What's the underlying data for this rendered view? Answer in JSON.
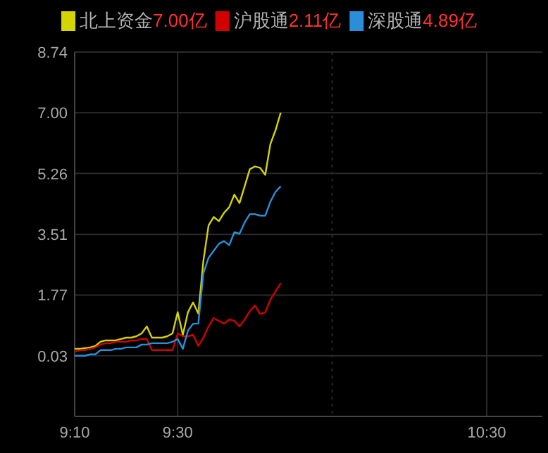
{
  "chart_data": {
    "type": "line",
    "legend": "top",
    "grid": true,
    "marker": "none",
    "line_style": "solid",
    "x": [
      9.1667,
      9.1833,
      9.2,
      9.2167,
      9.2333,
      9.25,
      9.2667,
      9.2833,
      9.3,
      9.3167,
      9.3333,
      9.35,
      9.3667,
      9.3833,
      9.4,
      9.4167,
      9.4333,
      9.45,
      9.4667,
      9.4833,
      9.5,
      9.5167,
      9.5333,
      9.55,
      9.5667,
      9.5833,
      9.6,
      9.6167,
      9.6333,
      9.65,
      9.6667,
      9.6833,
      9.7,
      9.7167,
      9.7333,
      9.75,
      9.7667,
      9.7833,
      9.8,
      9.8167,
      9.8333
    ],
    "xlim": [
      9.1667,
      10.68
    ],
    "xticks": [
      {
        "value": 9.1667,
        "label": "9:10"
      },
      {
        "value": 9.5,
        "label": "9:30"
      },
      {
        "value": 10.5,
        "label": "10:30"
      }
    ],
    "ylim": [
      -1.71,
      8.74
    ],
    "yticks": [
      0.03,
      1.77,
      3.51,
      5.26,
      {
        "value": 7,
        "label": "7.00"
      },
      8.74
    ],
    "ref_lines": [
      {
        "axis": "x",
        "value": 10,
        "label": null,
        "color": "#2a2a2a",
        "line_style": "dotted"
      }
    ],
    "annotations": [
      "7.00亿",
      "2.11亿",
      "4.89亿"
    ],
    "series": [
      {
        "name": "北上资金",
        "color": "#d4d400",
        "values": [
          0.23,
          0.23,
          0.25,
          0.27,
          0.31,
          0.43,
          0.47,
          0.47,
          0.47,
          0.51,
          0.55,
          0.55,
          0.59,
          0.67,
          0.87,
          0.55,
          0.55,
          0.55,
          0.59,
          0.67,
          1.28,
          0.63,
          1.28,
          1.56,
          1.24,
          2.76,
          3.77,
          4.01,
          3.89,
          4.13,
          4.29,
          4.65,
          4.41,
          4.89,
          5.38,
          5.46,
          5.42,
          5.22,
          6.1,
          6.5,
          7.0
        ]
      },
      {
        "name": "沪股通",
        "color": "#d00000",
        "values": [
          0.15,
          0.19,
          0.19,
          0.23,
          0.27,
          0.35,
          0.39,
          0.39,
          0.43,
          0.43,
          0.43,
          0.47,
          0.47,
          0.51,
          0.51,
          0.19,
          0.19,
          0.19,
          0.19,
          0.19,
          0.67,
          0.59,
          0.59,
          0.63,
          0.31,
          0.55,
          0.87,
          1.11,
          1.03,
          0.95,
          1.07,
          1.03,
          0.87,
          1.07,
          1.31,
          1.47,
          1.23,
          1.27,
          1.64,
          1.88,
          2.11
        ]
      },
      {
        "name": "深股通",
        "color": "#2a8fd8",
        "values": [
          0.03,
          0.03,
          0.03,
          0.07,
          0.07,
          0.19,
          0.19,
          0.19,
          0.23,
          0.23,
          0.27,
          0.27,
          0.27,
          0.35,
          0.35,
          0.39,
          0.39,
          0.39,
          0.39,
          0.43,
          0.51,
          0.23,
          0.75,
          0.95,
          0.95,
          2.4,
          2.84,
          3.04,
          3.24,
          3.32,
          3.2,
          3.57,
          3.53,
          3.85,
          4.09,
          4.09,
          4.05,
          4.05,
          4.45,
          4.73,
          4.89
        ]
      }
    ]
  }
}
